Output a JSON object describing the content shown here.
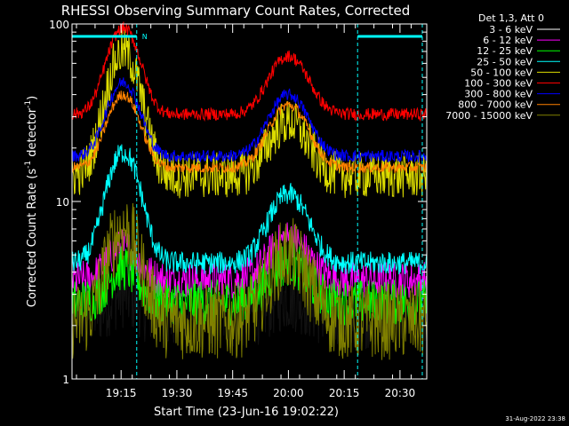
{
  "chart_data": {
    "type": "line",
    "title": "RHESSI Observing Summary Count Rates, Corrected",
    "xlabel": "Start Time (23-Jun-16 19:02:22)",
    "ylabel_main": "Corrected Count Rate (s",
    "ylabel_sup1": "-1",
    "ylabel_mid": " detector",
    "ylabel_sup2": "-1",
    "ylabel_end": ")",
    "yscale": "log",
    "ylim": [
      1,
      100
    ],
    "xlim_minutes": [
      19.03,
      20.62
    ],
    "y_ticks": [
      {
        "value": 1,
        "label": "1"
      },
      {
        "value": 10,
        "label": "10"
      },
      {
        "value": 100,
        "label": "100"
      }
    ],
    "x_ticks": [
      {
        "value": 19.25,
        "label": "19:15"
      },
      {
        "value": 19.5,
        "label": "19:30"
      },
      {
        "value": 19.75,
        "label": "19:45"
      },
      {
        "value": 20.0,
        "label": "20:00"
      },
      {
        "value": 20.25,
        "label": "20:15"
      },
      {
        "value": 20.5,
        "label": "20:30"
      }
    ],
    "legend_header": "Det 1,3, Att 0",
    "legend_position": "top-right",
    "night_marker_label": "N",
    "night_bars": [
      [
        19.03,
        19.32
      ],
      [
        20.31,
        20.6
      ]
    ],
    "saa_lines": [
      19.32,
      20.31,
      20.6
    ],
    "footer_date": "31-Aug-2022 23:38",
    "series": [
      {
        "name": "3 - 6 keV",
        "color": "#000000",
        "base": 2.3,
        "peaks": [
          3.0,
          2.9
        ],
        "noise": 0.45
      },
      {
        "name": "6 - 12 keV",
        "color": "#ff00ff",
        "base": 3.6,
        "peaks": [
          5.5,
          6.2
        ],
        "noise": 0.25
      },
      {
        "name": "12 - 25 keV",
        "color": "#00ff00",
        "base": 2.7,
        "peaks": [
          4.2,
          4.5
        ],
        "noise": 0.3
      },
      {
        "name": "25 - 50 keV",
        "color": "#00ffff",
        "base": 4.5,
        "peaks": [
          19,
          11
        ],
        "noise": 0.15
      },
      {
        "name": "50 - 100 keV",
        "color": "#dddd00",
        "base": 14,
        "peaks": [
          70,
          28
        ],
        "noise": 0.3
      },
      {
        "name": "100 - 300 keV",
        "color": "#ff0000",
        "base": 31,
        "peaks": [
          95,
          66
        ],
        "noise": 0.08
      },
      {
        "name": "300 - 800 keV",
        "color": "#0000ff",
        "base": 18,
        "peaks": [
          47,
          40
        ],
        "noise": 0.08
      },
      {
        "name": "800 - 7000 keV",
        "color": "#ff8000",
        "base": 15.5,
        "peaks": [
          40,
          35
        ],
        "noise": 0.07
      },
      {
        "name": "7000 - 15000 keV",
        "color": "#808000",
        "base": 2.1,
        "peaks": [
          7,
          5
        ],
        "noise": 0.5
      }
    ],
    "peak_times": [
      19.26,
      20.0
    ],
    "peak_widths": [
      0.09,
      0.11
    ],
    "accent_color": "#00ffff"
  }
}
